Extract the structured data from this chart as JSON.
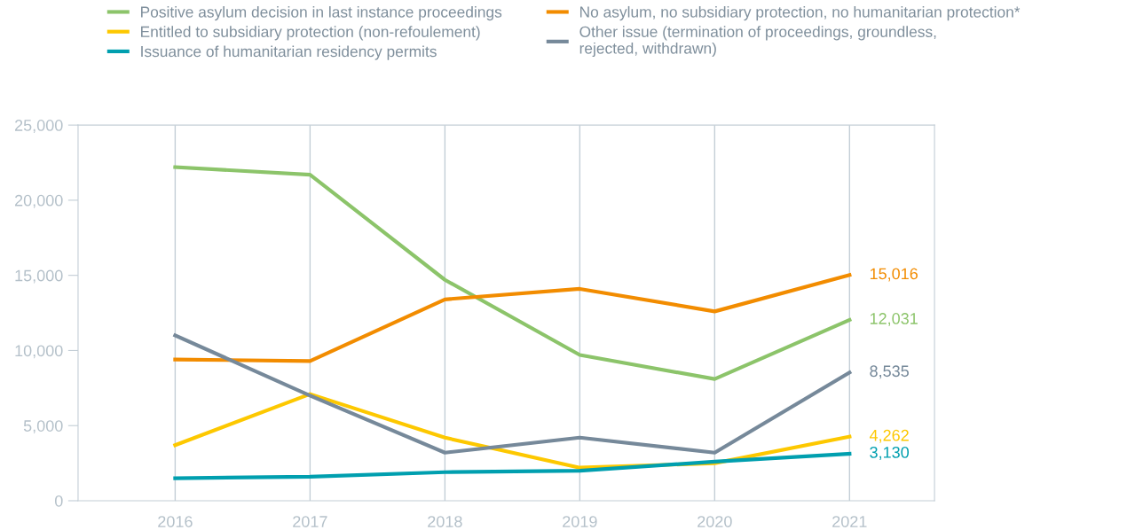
{
  "chart_data": {
    "type": "line",
    "x": [
      2016,
      2017,
      2018,
      2019,
      2020,
      2021
    ],
    "xlim": [
      2015.28,
      2021.63
    ],
    "xticks": [
      2016,
      2017,
      2018,
      2019,
      2020,
      2021
    ],
    "ylim": [
      0,
      25000
    ],
    "yticks": [
      {
        "value": 0,
        "label": "0"
      },
      {
        "value": 5000,
        "label": "5,000"
      },
      {
        "value": 10000,
        "label": "10,000"
      },
      {
        "value": 15000,
        "label": "15,000"
      },
      {
        "value": 20000,
        "label": "20,000"
      },
      {
        "value": 25000,
        "label": "25,000"
      }
    ],
    "grid": "x",
    "legend": "top",
    "marker": "none",
    "line_style": "solid",
    "series": [
      {
        "name": "Positive asylum decision in last instance proceedings",
        "color": "#8cc46a",
        "values": [
          22200,
          21700,
          14700,
          9700,
          8100,
          12031
        ],
        "value_labels": [
          null,
          null,
          null,
          null,
          null,
          "12,031"
        ]
      },
      {
        "name": "Entitled to subsidiary protection (non-refoulement)",
        "color": "#fdc800",
        "values": [
          3700,
          7100,
          4200,
          2200,
          2500,
          4262
        ],
        "value_labels": [
          null,
          null,
          null,
          null,
          null,
          "4,262"
        ]
      },
      {
        "name": "Issuance of humanitarian residency permits",
        "color": "#009faf",
        "values": [
          1500,
          1600,
          1900,
          2000,
          2600,
          3130
        ],
        "value_labels": [
          null,
          null,
          null,
          null,
          null,
          "3,130"
        ]
      },
      {
        "name": "No asylum, no subsidiary protection, no humanitarian protection*",
        "color": "#f28c00",
        "values": [
          9400,
          9300,
          13400,
          14100,
          12600,
          15016
        ],
        "value_labels": [
          null,
          null,
          null,
          null,
          null,
          "15,016"
        ]
      },
      {
        "name": "Other issue (termination of proceedings, groundless,\nrejected, withdrawn)",
        "color": "#76899a",
        "values": [
          11000,
          7000,
          3200,
          4200,
          3200,
          8535
        ],
        "value_labels": [
          null,
          null,
          null,
          null,
          null,
          "8,535"
        ]
      }
    ]
  }
}
